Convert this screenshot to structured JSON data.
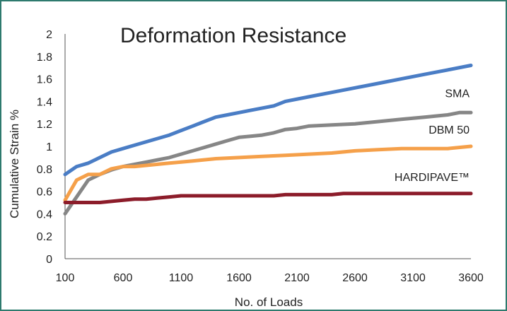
{
  "chart_data": {
    "type": "line",
    "title": "Deformation Resistance",
    "xlabel": "No. of Loads",
    "ylabel": "Cumulative Strain %",
    "xlim": [
      100,
      3600
    ],
    "ylim": [
      0,
      2
    ],
    "x_ticks": [
      100,
      600,
      1100,
      1600,
      2100,
      2600,
      3100,
      3600
    ],
    "y_ticks": [
      0,
      0.2,
      0.4,
      0.6,
      0.8,
      1,
      1.2,
      1.4,
      1.6,
      1.8,
      2
    ],
    "grid": false,
    "legend": "none",
    "series": [
      {
        "name": "",
        "color": "#4a7dc5",
        "x": [
          100,
          200,
          300,
          400,
          500,
          600,
          700,
          800,
          900,
          1000,
          1100,
          1200,
          1300,
          1400,
          1500,
          1600,
          1700,
          1800,
          1900,
          2000,
          2200,
          2400,
          2600,
          2800,
          3000,
          3200,
          3400,
          3600
        ],
        "y": [
          0.75,
          0.82,
          0.85,
          0.9,
          0.95,
          0.98,
          1.01,
          1.04,
          1.07,
          1.1,
          1.14,
          1.18,
          1.22,
          1.26,
          1.28,
          1.3,
          1.32,
          1.34,
          1.36,
          1.4,
          1.44,
          1.48,
          1.52,
          1.56,
          1.6,
          1.64,
          1.68,
          1.72
        ]
      },
      {
        "name": "SMA",
        "color": "#868686",
        "x": [
          100,
          200,
          300,
          400,
          500,
          600,
          700,
          800,
          900,
          1000,
          1100,
          1200,
          1300,
          1400,
          1500,
          1600,
          1700,
          1800,
          1900,
          2000,
          2100,
          2200,
          2400,
          2600,
          2800,
          3000,
          3200,
          3400,
          3500,
          3600
        ],
        "y": [
          0.4,
          0.55,
          0.7,
          0.75,
          0.79,
          0.82,
          0.84,
          0.86,
          0.88,
          0.9,
          0.93,
          0.96,
          0.99,
          1.02,
          1.05,
          1.08,
          1.09,
          1.1,
          1.12,
          1.15,
          1.16,
          1.18,
          1.19,
          1.2,
          1.22,
          1.24,
          1.26,
          1.28,
          1.3,
          1.3
        ]
      },
      {
        "name": "DBM 50",
        "color": "#f5a04a",
        "x": [
          100,
          200,
          300,
          400,
          500,
          600,
          700,
          800,
          900,
          1000,
          1200,
          1400,
          1600,
          1800,
          2000,
          2200,
          2400,
          2600,
          2800,
          3000,
          3200,
          3400,
          3600
        ],
        "y": [
          0.52,
          0.7,
          0.75,
          0.75,
          0.8,
          0.82,
          0.82,
          0.83,
          0.84,
          0.85,
          0.87,
          0.89,
          0.9,
          0.91,
          0.92,
          0.93,
          0.94,
          0.96,
          0.97,
          0.98,
          0.98,
          0.98,
          1.0
        ]
      },
      {
        "name": "HARDIPAVE™",
        "color": "#8c1c2a",
        "x": [
          100,
          200,
          300,
          400,
          500,
          600,
          700,
          800,
          900,
          1000,
          1100,
          1200,
          1400,
          1600,
          1800,
          1900,
          2000,
          2200,
          2400,
          2500,
          2600,
          2800,
          3000,
          3200,
          3400,
          3600
        ],
        "y": [
          0.5,
          0.5,
          0.5,
          0.5,
          0.51,
          0.52,
          0.53,
          0.53,
          0.54,
          0.55,
          0.56,
          0.56,
          0.56,
          0.56,
          0.56,
          0.56,
          0.57,
          0.57,
          0.57,
          0.58,
          0.58,
          0.58,
          0.58,
          0.58,
          0.58,
          0.58
        ]
      }
    ]
  }
}
